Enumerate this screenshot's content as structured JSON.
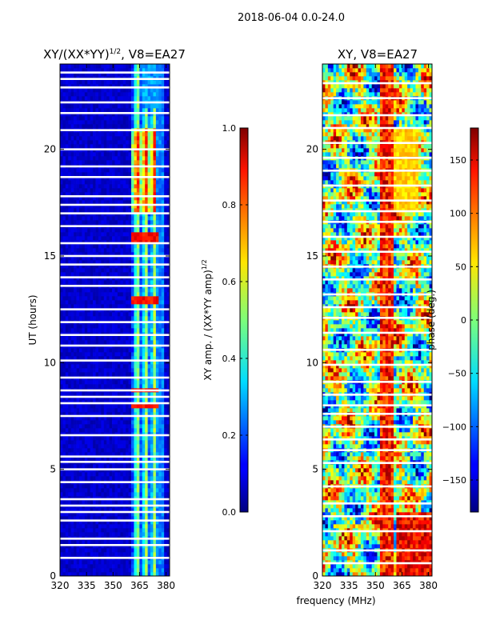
{
  "figure": {
    "suptitle": "2018-06-04 0.0-24.0",
    "xlabel_shared": "frequency (MHz)"
  },
  "chart_data": [
    {
      "type": "heatmap",
      "title": "XY/(XX*YY)^1/2, V8=EA27",
      "title_base": "XY/(XX*YY)",
      "title_sup": "1/2",
      "title_tail": ", V8=EA27",
      "xlabel": "",
      "ylabel": "UT (hours)",
      "xlim": [
        320,
        382
      ],
      "ylim": [
        0,
        24
      ],
      "xticks": [
        "320",
        "335",
        "350",
        "365",
        "380"
      ],
      "xtick_values": [
        320,
        335,
        350,
        365,
        380
      ],
      "yticks": [
        "0",
        "5",
        "10",
        "15",
        "20"
      ],
      "ytick_values": [
        0,
        5,
        10,
        15,
        20
      ],
      "colorbar": {
        "label_base": "XY amp. / (XX*YY amp)",
        "label_sup": "1/2",
        "range": [
          0.0,
          1.0
        ],
        "ticks": [
          "0.0",
          "0.2",
          "0.4",
          "0.6",
          "0.8",
          "1.0"
        ],
        "tick_values": [
          0.0,
          0.2,
          0.4,
          0.6,
          0.8,
          1.0
        ]
      },
      "colormap": "jet",
      "flagged_hours": [
        0.85,
        1.45,
        1.75,
        2.6,
        3.0,
        3.3,
        3.6,
        4.4,
        5.0,
        5.35,
        5.6,
        6.6,
        7.5,
        8.1,
        8.4,
        8.7,
        9.3,
        10.1,
        10.8,
        11.3,
        11.9,
        12.5,
        13.6,
        14.0,
        14.6,
        15.0,
        15.6,
        16.4,
        17.0,
        17.4,
        17.8,
        18.7,
        19.2,
        20.0,
        20.9,
        21.7,
        22.2,
        22.9,
        23.3,
        23.6
      ]
    },
    {
      "type": "heatmap",
      "title": "XY, V8=EA27",
      "xlabel": "frequency (MHz)",
      "ylabel": "",
      "xlim": [
        320,
        382
      ],
      "ylim": [
        0,
        24
      ],
      "xticks": [
        "320",
        "335",
        "350",
        "365",
        "380"
      ],
      "xtick_values": [
        320,
        335,
        350,
        365,
        380
      ],
      "yticks": [
        "0",
        "5",
        "10",
        "15",
        "20"
      ],
      "ytick_values": [
        0,
        5,
        10,
        15,
        20
      ],
      "colorbar": {
        "label": "phase (deg.)",
        "range": [
          -180,
          180
        ],
        "ticks": [
          "−150",
          "−100",
          "−50",
          "0",
          "50",
          "100",
          "150"
        ],
        "tick_values": [
          -150,
          -100,
          -50,
          0,
          50,
          100,
          150
        ]
      },
      "colormap": "jet",
      "flagged_hours": [
        0.6,
        1.2,
        2.1,
        2.8,
        3.4,
        4.2,
        5.3,
        5.9,
        6.4,
        7.0,
        7.6,
        8.0,
        8.5,
        9.1,
        9.9,
        10.6,
        11.4,
        12.1,
        12.6,
        13.2,
        13.9,
        14.5,
        15.2,
        15.9,
        16.6,
        17.1,
        17.6,
        18.3,
        19.0,
        19.6,
        20.3,
        21.0,
        21.6,
        22.4,
        23.1
      ]
    }
  ]
}
